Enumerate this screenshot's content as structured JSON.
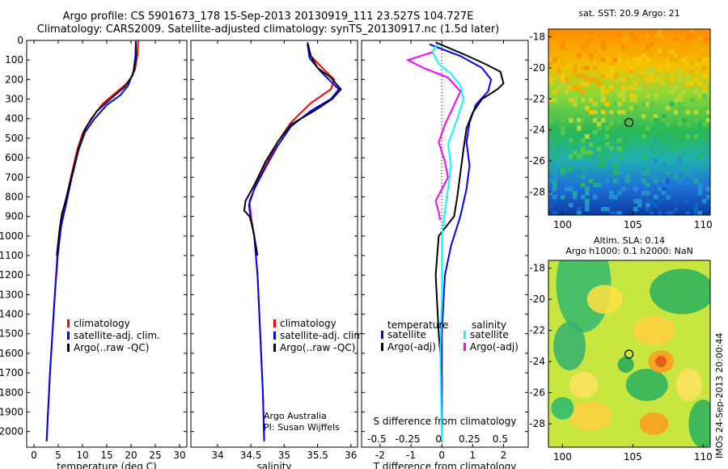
{
  "title": {
    "line1": "Argo profile: CS 5901673_178 15-Sep-2013 20130919_111 23.527S 104.727E",
    "line2": "Climatology: CARS2009. Satellite-adjusted climatology: synTS_20130917.nc (1.5d later)"
  },
  "footnote": {
    "line1": "Argo Australia",
    "line2": "PI: Susan Wijffels"
  },
  "side_stamp": "IMOS 24-Sep-2013 20:00:44",
  "colors": {
    "climatology": "#ff0000",
    "satellite": "#0000ff",
    "argo": "#000000",
    "salinity_satellite": "#00ffff",
    "salinity_argo": "#ff00ff"
  },
  "chart_data": [
    {
      "type": "line",
      "xlabel": "temperature (deg C)",
      "ylim": [
        2080,
        0
      ],
      "xlim": [
        -1.5,
        31.5
      ],
      "xticks": [
        "0",
        "5",
        "10",
        "15",
        "20",
        "25",
        "30"
      ],
      "yticks": [
        "0",
        "100",
        "200",
        "300",
        "400",
        "500",
        "600",
        "700",
        "800",
        "900",
        "1000",
        "1100",
        "1200",
        "1300",
        "1400",
        "1500",
        "1600",
        "1700",
        "1800",
        "1900",
        "2000"
      ],
      "legend": [
        "climatology",
        "satellite-adj. clim.",
        "Argo(..raw -QC)"
      ],
      "series": [
        {
          "name": "climatology",
          "color": "#ff0000",
          "points": [
            [
              21.5,
              0
            ],
            [
              21.3,
              80
            ],
            [
              20.8,
              150
            ],
            [
              19.6,
              210
            ],
            [
              17.2,
              260
            ],
            [
              14.3,
              320
            ],
            [
              11.8,
              400
            ],
            [
              10.1,
              470
            ],
            [
              8.9,
              560
            ],
            [
              7.6,
              700
            ],
            [
              6.3,
              850
            ],
            [
              5.5,
              950
            ],
            [
              4.8,
              1100
            ],
            [
              4.3,
              1300
            ],
            [
              3.8,
              1500
            ],
            [
              3.3,
              1700
            ],
            [
              2.9,
              1900
            ],
            [
              2.6,
              2050
            ]
          ]
        },
        {
          "name": "satellite-adj. clim.",
          "color": "#0000ff",
          "points": [
            [
              21.0,
              0
            ],
            [
              20.9,
              80
            ],
            [
              20.5,
              160
            ],
            [
              19.4,
              230
            ],
            [
              17.8,
              280
            ],
            [
              15.0,
              330
            ],
            [
              12.5,
              400
            ],
            [
              10.5,
              470
            ],
            [
              9.2,
              560
            ],
            [
              7.8,
              700
            ],
            [
              6.5,
              850
            ],
            [
              5.6,
              950
            ],
            [
              4.9,
              1100
            ],
            [
              4.3,
              1300
            ],
            [
              3.8,
              1500
            ],
            [
              3.3,
              1700
            ],
            [
              2.9,
              1900
            ],
            [
              2.6,
              2050
            ]
          ]
        },
        {
          "name": "Argo(..raw -QC)",
          "color": "#000000",
          "points": [
            [
              21.0,
              10
            ],
            [
              21.0,
              100
            ],
            [
              20.3,
              180
            ],
            [
              18.6,
              240
            ],
            [
              16.2,
              290
            ],
            [
              13.0,
              360
            ],
            [
              10.6,
              450
            ],
            [
              9.2,
              550
            ],
            [
              7.8,
              690
            ],
            [
              6.3,
              840
            ],
            [
              5.8,
              880
            ],
            [
              5.3,
              960
            ],
            [
              4.7,
              1100
            ]
          ]
        }
      ]
    },
    {
      "type": "line",
      "xlabel": "salinity",
      "ylim": [
        2080,
        0
      ],
      "xlim": [
        33.6,
        36.1
      ],
      "xticks": [
        "34",
        "34.5",
        "35",
        "35.5",
        "36"
      ],
      "legend": [
        "climatology",
        "satellite-adj. clim.",
        "Argo(..raw -QC)"
      ],
      "series": [
        {
          "name": "climatology",
          "color": "#ff0000",
          "points": [
            [
              35.35,
              20
            ],
            [
              35.4,
              80
            ],
            [
              35.6,
              150
            ],
            [
              35.75,
              200
            ],
            [
              35.7,
              250
            ],
            [
              35.4,
              320
            ],
            [
              35.1,
              420
            ],
            [
              34.9,
              520
            ],
            [
              34.75,
              620
            ],
            [
              34.6,
              720
            ],
            [
              34.48,
              820
            ],
            [
              34.5,
              900
            ],
            [
              34.55,
              1000
            ],
            [
              34.6,
              1200
            ],
            [
              34.64,
              1500
            ],
            [
              34.68,
              1800
            ],
            [
              34.7,
              2050
            ]
          ]
        },
        {
          "name": "satellite-adj. clim.",
          "color": "#0000ff",
          "points": [
            [
              35.35,
              20
            ],
            [
              35.38,
              90
            ],
            [
              35.55,
              160
            ],
            [
              35.82,
              250
            ],
            [
              35.7,
              300
            ],
            [
              35.4,
              360
            ],
            [
              35.1,
              440
            ],
            [
              34.9,
              540
            ],
            [
              34.72,
              650
            ],
            [
              34.55,
              760
            ],
            [
              34.47,
              840
            ],
            [
              34.5,
              920
            ],
            [
              34.55,
              1000
            ],
            [
              34.6,
              1200
            ],
            [
              34.64,
              1500
            ],
            [
              34.68,
              1800
            ],
            [
              34.7,
              2050
            ]
          ]
        },
        {
          "name": "Argo(..raw -QC)",
          "color": "#000000",
          "points": [
            [
              35.35,
              10
            ],
            [
              35.4,
              80
            ],
            [
              35.5,
              140
            ],
            [
              35.7,
              190
            ],
            [
              35.85,
              250
            ],
            [
              35.72,
              300
            ],
            [
              35.45,
              360
            ],
            [
              35.1,
              430
            ],
            [
              34.9,
              520
            ],
            [
              34.72,
              620
            ],
            [
              34.55,
              740
            ],
            [
              34.42,
              820
            ],
            [
              34.4,
              870
            ],
            [
              34.48,
              900
            ],
            [
              34.53,
              960
            ],
            [
              34.6,
              1100
            ]
          ]
        }
      ]
    },
    {
      "type": "line",
      "xlabel": "T difference from climatology",
      "xlabel2": "S difference from climatology",
      "ylim": [
        2080,
        0
      ],
      "xlim": [
        -2.6,
        2.8
      ],
      "xticks": [
        "-2",
        "-1",
        "0",
        "1",
        "2"
      ],
      "xticks_top": [
        "-0.5",
        "-0.25",
        "0",
        "0.25",
        "0.5"
      ],
      "legend_titles": [
        "temperature",
        "salinity"
      ],
      "legend": [
        "satellite",
        "Argo(-adj)",
        "satellite",
        "Argo(-adj)"
      ],
      "series": [
        {
          "name": "satellite",
          "color": "#0000ff",
          "points": [
            [
              -0.4,
              20
            ],
            [
              0.6,
              80
            ],
            [
              1.3,
              140
            ],
            [
              1.6,
              200
            ],
            [
              1.5,
              260
            ],
            [
              1.1,
              330
            ],
            [
              0.9,
              420
            ],
            [
              0.8,
              520
            ],
            [
              0.9,
              640
            ],
            [
              0.8,
              760
            ],
            [
              0.6,
              900
            ],
            [
              0.3,
              1050
            ],
            [
              0.1,
              1200
            ],
            [
              0.0,
              1500
            ],
            [
              0.0,
              2050
            ]
          ]
        },
        {
          "name": "Argo(-adj)",
          "color": "#000000",
          "points": [
            [
              -0.2,
              10
            ],
            [
              0.7,
              70
            ],
            [
              1.4,
              120
            ],
            [
              1.9,
              160
            ],
            [
              2.0,
              220
            ],
            [
              1.8,
              250
            ],
            [
              1.3,
              300
            ],
            [
              1.0,
              370
            ],
            [
              0.8,
              450
            ],
            [
              0.7,
              560
            ],
            [
              0.6,
              680
            ],
            [
              0.5,
              800
            ],
            [
              0.4,
              900
            ],
            [
              -0.1,
              1000
            ],
            [
              -0.2,
              1200
            ],
            [
              -0.1,
              1500
            ],
            [
              0.0,
              1700
            ]
          ]
        },
        {
          "name": "salinity satellite",
          "color": "#00ffff",
          "points": [
            [
              -0.15,
              20
            ],
            [
              -0.3,
              60
            ],
            [
              -0.1,
              120
            ],
            [
              0.3,
              170
            ],
            [
              0.6,
              230
            ],
            [
              0.7,
              300
            ],
            [
              0.5,
              400
            ],
            [
              0.2,
              530
            ],
            [
              0.3,
              640
            ],
            [
              0.2,
              760
            ],
            [
              0.1,
              880
            ],
            [
              0.0,
              1000
            ],
            [
              0.0,
              1300
            ],
            [
              -0.05,
              1600
            ],
            [
              0.0,
              2050
            ]
          ]
        },
        {
          "name": "salinity Argo(-adj)",
          "color": "#ff00ff",
          "points": [
            [
              -0.3,
              60
            ],
            [
              -1.1,
              100
            ],
            [
              -0.6,
              140
            ],
            [
              0.2,
              190
            ],
            [
              0.6,
              260
            ],
            [
              0.4,
              330
            ],
            [
              0.1,
              430
            ],
            [
              -0.1,
              520
            ],
            [
              0.1,
              620
            ],
            [
              0.2,
              700
            ],
            [
              -0.2,
              820
            ],
            [
              -0.1,
              880
            ],
            [
              -0.05,
              920
            ]
          ]
        }
      ]
    },
    {
      "type": "heatmap",
      "title": "sat. SST: 20.9 Argo: 21",
      "xlim": [
        99,
        110.5
      ],
      "ylim": [
        -29.5,
        -17.5
      ],
      "xticks": [
        "100",
        "105",
        "110"
      ],
      "yticks": [
        "-18",
        "-20",
        "-22",
        "-24",
        "-26",
        "-28"
      ],
      "marker": [
        104.727,
        -23.527
      ]
    },
    {
      "type": "heatmap",
      "title": "Altim. SLA: 0.14",
      "subtitle": "Argo h1000: 0.1 h2000: NaN",
      "xlim": [
        99,
        110.5
      ],
      "ylim": [
        -29.5,
        -17.5
      ],
      "xticks": [
        "100",
        "105",
        "110"
      ],
      "yticks": [
        "-18",
        "-20",
        "-22",
        "-24",
        "-26",
        "-28"
      ],
      "marker": [
        104.727,
        -23.527
      ]
    }
  ]
}
